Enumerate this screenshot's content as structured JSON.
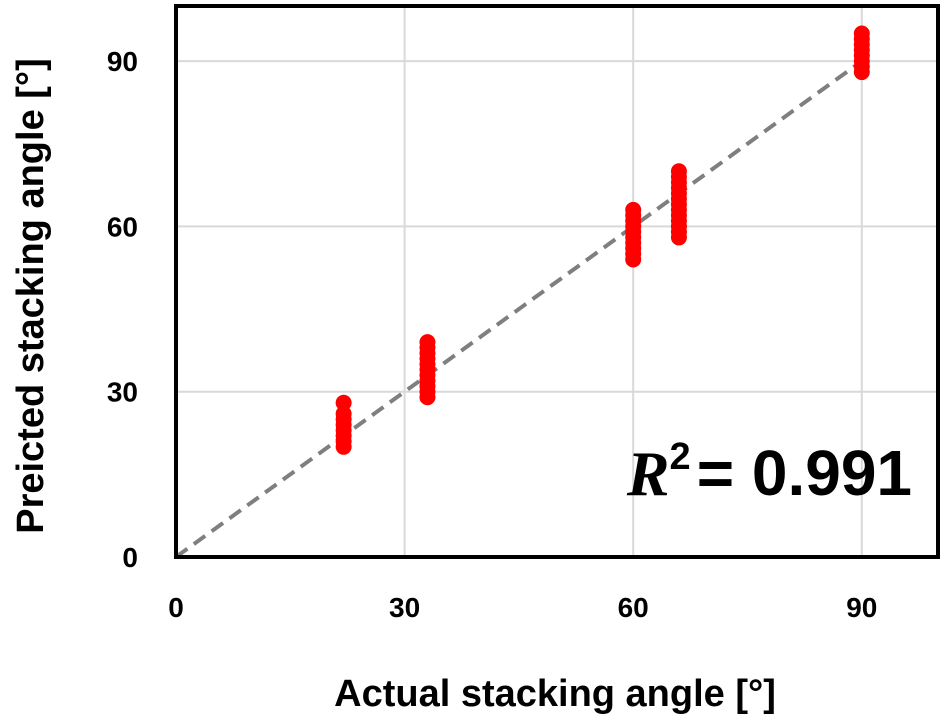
{
  "chart_data": {
    "type": "scatter",
    "title": "",
    "xlabel": "Actual stacking angle [°]",
    "ylabel": "Preicted stacking angle [°]",
    "xlim": [
      0,
      100
    ],
    "ylim": [
      0,
      100
    ],
    "xticks": [
      "0",
      "30",
      "60",
      "90"
    ],
    "yticks": [
      "0",
      "30",
      "60",
      "90"
    ],
    "grid": true,
    "reference_line": {
      "style": "dashed",
      "color": "#7f7f7f",
      "from": [
        0,
        0
      ],
      "to": [
        90,
        90
      ]
    },
    "marker_color": "#ff0000",
    "series": [
      {
        "points": [
          {
            "x": 22,
            "y": 20
          },
          {
            "x": 22,
            "y": 21
          },
          {
            "x": 22,
            "y": 22
          },
          {
            "x": 22,
            "y": 23
          },
          {
            "x": 22,
            "y": 24
          },
          {
            "x": 22,
            "y": 25
          },
          {
            "x": 22,
            "y": 26
          },
          {
            "x": 22,
            "y": 28
          },
          {
            "x": 33,
            "y": 29
          },
          {
            "x": 33,
            "y": 30
          },
          {
            "x": 33,
            "y": 31
          },
          {
            "x": 33,
            "y": 32
          },
          {
            "x": 33,
            "y": 33
          },
          {
            "x": 33,
            "y": 34
          },
          {
            "x": 33,
            "y": 35
          },
          {
            "x": 33,
            "y": 36
          },
          {
            "x": 33,
            "y": 37
          },
          {
            "x": 33,
            "y": 38
          },
          {
            "x": 33,
            "y": 39
          },
          {
            "x": 60,
            "y": 54
          },
          {
            "x": 60,
            "y": 55
          },
          {
            "x": 60,
            "y": 56
          },
          {
            "x": 60,
            "y": 57
          },
          {
            "x": 60,
            "y": 58
          },
          {
            "x": 60,
            "y": 59
          },
          {
            "x": 60,
            "y": 60
          },
          {
            "x": 60,
            "y": 61
          },
          {
            "x": 60,
            "y": 62
          },
          {
            "x": 60,
            "y": 63
          },
          {
            "x": 66,
            "y": 58
          },
          {
            "x": 66,
            "y": 59
          },
          {
            "x": 66,
            "y": 60
          },
          {
            "x": 66,
            "y": 61
          },
          {
            "x": 66,
            "y": 62
          },
          {
            "x": 66,
            "y": 63
          },
          {
            "x": 66,
            "y": 64
          },
          {
            "x": 66,
            "y": 65
          },
          {
            "x": 66,
            "y": 66
          },
          {
            "x": 66,
            "y": 67
          },
          {
            "x": 66,
            "y": 68
          },
          {
            "x": 66,
            "y": 69
          },
          {
            "x": 66,
            "y": 70
          },
          {
            "x": 90,
            "y": 88
          },
          {
            "x": 90,
            "y": 89
          },
          {
            "x": 90,
            "y": 90
          },
          {
            "x": 90,
            "y": 91
          },
          {
            "x": 90,
            "y": 92
          },
          {
            "x": 90,
            "y": 93
          },
          {
            "x": 90,
            "y": 94
          },
          {
            "x": 90,
            "y": 95
          }
        ]
      }
    ],
    "annotation": {
      "symbol": "R",
      "superscript": "2",
      "text": "= 0.991"
    }
  }
}
